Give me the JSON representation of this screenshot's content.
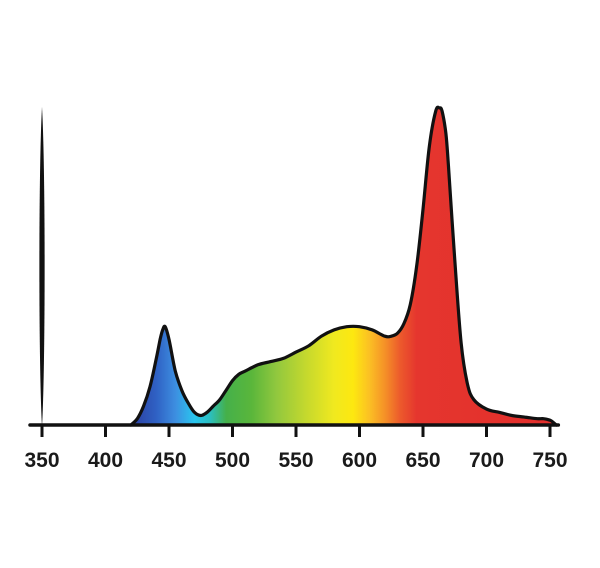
{
  "chart_data": {
    "type": "area",
    "title": "",
    "xlabel": "",
    "ylabel": "",
    "xlim": [
      350,
      755
    ],
    "ylim": [
      0,
      1
    ],
    "x_ticks": [
      350,
      400,
      450,
      500,
      550,
      600,
      650,
      700,
      750
    ],
    "tick_labels": [
      "350",
      "400",
      "450",
      "500",
      "550",
      "600",
      "650",
      "700",
      "750"
    ],
    "y_axis_visible": true,
    "y_ticks_visible": false,
    "grid": false,
    "legend": "none",
    "fill": "visible-spectrum gradient",
    "series": [
      {
        "x": [
          420,
          425,
          430,
          435,
          440,
          443,
          445,
          447,
          450,
          455,
          460,
          465,
          470,
          475,
          480,
          485,
          490,
          495,
          500,
          505,
          510,
          520,
          530,
          540,
          550,
          560,
          570,
          580,
          590,
          600,
          610,
          620,
          625,
          630,
          635,
          640,
          645,
          650,
          655,
          660,
          663,
          665,
          668,
          670,
          675,
          680,
          685,
          690,
          700,
          710,
          720,
          730,
          740,
          745,
          750,
          752,
          755
        ],
        "y": [
          0.0,
          0.02,
          0.06,
          0.12,
          0.21,
          0.27,
          0.3,
          0.31,
          0.27,
          0.17,
          0.11,
          0.07,
          0.04,
          0.03,
          0.04,
          0.06,
          0.08,
          0.11,
          0.14,
          0.16,
          0.17,
          0.19,
          0.2,
          0.21,
          0.23,
          0.25,
          0.28,
          0.3,
          0.31,
          0.31,
          0.3,
          0.28,
          0.28,
          0.29,
          0.32,
          0.38,
          0.5,
          0.68,
          0.88,
          0.99,
          1.0,
          0.99,
          0.92,
          0.82,
          0.52,
          0.26,
          0.13,
          0.08,
          0.05,
          0.04,
          0.03,
          0.025,
          0.02,
          0.02,
          0.015,
          0.01,
          0.0
        ]
      }
    ],
    "gradient_stops": [
      {
        "wavelength": 420,
        "color": "#2c3e9f"
      },
      {
        "wavelength": 440,
        "color": "#2f61c4"
      },
      {
        "wavelength": 455,
        "color": "#3d8ee0"
      },
      {
        "wavelength": 470,
        "color": "#29c6ef"
      },
      {
        "wavelength": 482,
        "color": "#2bbfc2"
      },
      {
        "wavelength": 495,
        "color": "#45b04a"
      },
      {
        "wavelength": 515,
        "color": "#5ab63b"
      },
      {
        "wavelength": 535,
        "color": "#92c83e"
      },
      {
        "wavelength": 560,
        "color": "#c9da2c"
      },
      {
        "wavelength": 580,
        "color": "#f0e91f"
      },
      {
        "wavelength": 595,
        "color": "#fde810"
      },
      {
        "wavelength": 608,
        "color": "#fbbf24"
      },
      {
        "wavelength": 620,
        "color": "#f59127"
      },
      {
        "wavelength": 632,
        "color": "#ec5a2c"
      },
      {
        "wavelength": 645,
        "color": "#e5362e"
      },
      {
        "wavelength": 755,
        "color": "#e32e2b"
      }
    ],
    "colors": {
      "outline": "#111111",
      "axis": "#111111",
      "text": "#1a1a1a",
      "background": "#ffffff"
    }
  }
}
